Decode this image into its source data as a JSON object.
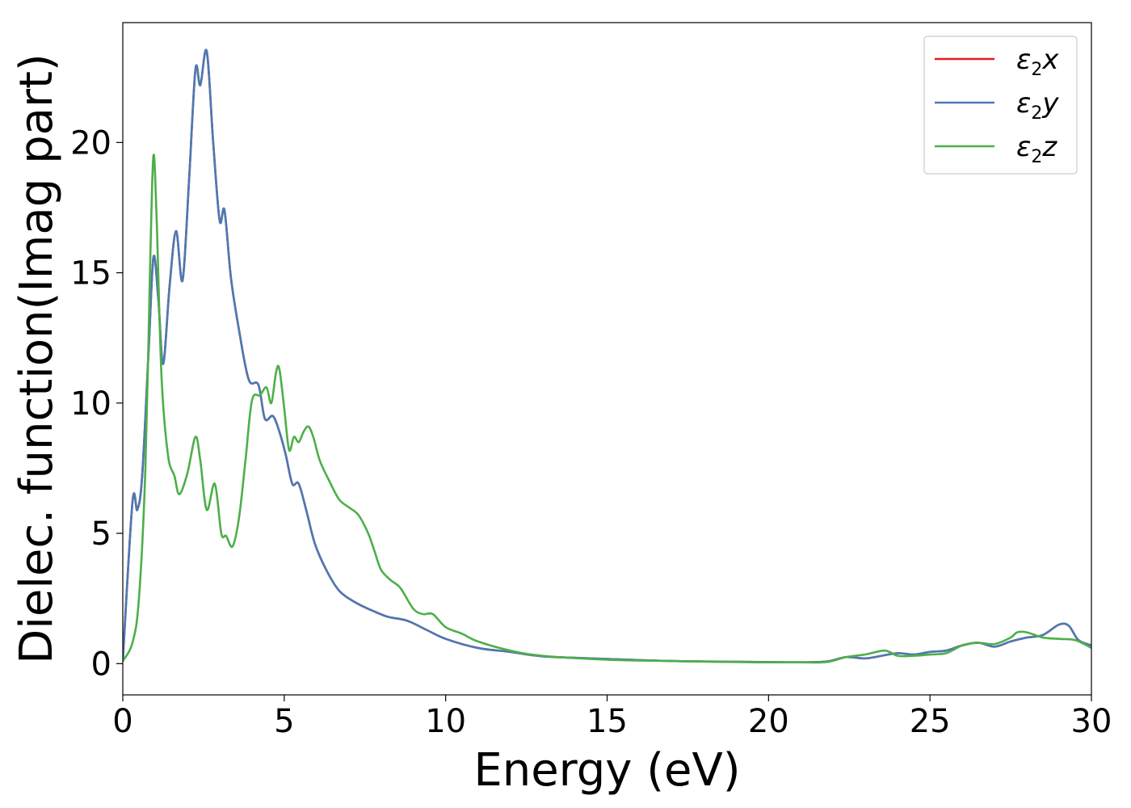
{
  "chart_data": {
    "type": "line",
    "xlabel": "Energy (eV)",
    "ylabel": "Dielec. function(Imag part)",
    "xlim": [
      0,
      30
    ],
    "ylim": [
      -1.2,
      24.6
    ],
    "xticks": [
      0,
      5,
      10,
      15,
      20,
      25,
      30
    ],
    "yticks": [
      0,
      5,
      10,
      15,
      20
    ],
    "xtick_labels": [
      "0",
      "5",
      "10",
      "15",
      "20",
      "25",
      "30"
    ],
    "ytick_labels": [
      "0",
      "5",
      "10",
      "15",
      "20"
    ],
    "grid": false,
    "legend_position": "top-right",
    "series": [
      {
        "name": "ε2x",
        "legend": {
          "symbol": "ε",
          "sub": "2",
          "comp": "x"
        },
        "color": "#e41a1c",
        "x": [
          0,
          0.3,
          0.45,
          0.6,
          0.8,
          0.95,
          1.1,
          1.25,
          1.45,
          1.65,
          1.85,
          2.05,
          2.25,
          2.4,
          2.6,
          2.8,
          3.0,
          3.15,
          3.35,
          3.6,
          3.9,
          4.2,
          4.4,
          4.65,
          4.85,
          5.05,
          5.25,
          5.45,
          5.7,
          5.95,
          6.3,
          6.7,
          7.2,
          7.7,
          8.2,
          8.8,
          9.4,
          10.0,
          11.0,
          12.0,
          13.0,
          15.0,
          17.0,
          19.0,
          20.0,
          21.0,
          21.8,
          22.4,
          23.0,
          23.5,
          24.0,
          24.5,
          25.0,
          25.5,
          26.0,
          26.5,
          27.0,
          27.5,
          28.0,
          28.5,
          29.0,
          29.3,
          29.6,
          30.0
        ],
        "y": [
          0.1,
          6.2,
          5.9,
          7.2,
          12.0,
          15.6,
          14.0,
          11.5,
          14.5,
          16.6,
          14.7,
          18.5,
          22.8,
          22.2,
          23.5,
          20.0,
          17.0,
          17.4,
          14.8,
          12.8,
          10.9,
          10.7,
          9.4,
          9.5,
          8.9,
          8.0,
          6.9,
          6.9,
          5.8,
          4.6,
          3.6,
          2.8,
          2.35,
          2.05,
          1.8,
          1.65,
          1.3,
          0.95,
          0.6,
          0.45,
          0.28,
          0.18,
          0.1,
          0.07,
          0.06,
          0.05,
          0.08,
          0.25,
          0.2,
          0.3,
          0.4,
          0.35,
          0.45,
          0.5,
          0.7,
          0.8,
          0.65,
          0.85,
          1.0,
          1.1,
          1.5,
          1.45,
          0.9,
          0.7
        ]
      },
      {
        "name": "ε2y",
        "legend": {
          "symbol": "ε",
          "sub": "2",
          "comp": "y"
        },
        "color": "#4a7ab5",
        "x": [
          0,
          0.3,
          0.45,
          0.6,
          0.8,
          0.95,
          1.1,
          1.25,
          1.45,
          1.65,
          1.85,
          2.05,
          2.25,
          2.4,
          2.6,
          2.8,
          3.0,
          3.15,
          3.35,
          3.6,
          3.9,
          4.2,
          4.4,
          4.65,
          4.85,
          5.05,
          5.25,
          5.45,
          5.7,
          5.95,
          6.3,
          6.7,
          7.2,
          7.7,
          8.2,
          8.8,
          9.4,
          10.0,
          11.0,
          12.0,
          13.0,
          15.0,
          17.0,
          19.0,
          20.0,
          21.0,
          21.8,
          22.4,
          23.0,
          23.5,
          24.0,
          24.5,
          25.0,
          25.5,
          26.0,
          26.5,
          27.0,
          27.5,
          28.0,
          28.5,
          29.0,
          29.3,
          29.6,
          30.0
        ],
        "y": [
          0.1,
          6.2,
          5.9,
          7.2,
          12.0,
          15.6,
          14.0,
          11.5,
          14.5,
          16.6,
          14.7,
          18.5,
          22.8,
          22.2,
          23.5,
          20.0,
          17.0,
          17.4,
          14.8,
          12.8,
          10.9,
          10.7,
          9.4,
          9.5,
          8.9,
          8.0,
          6.9,
          6.9,
          5.8,
          4.6,
          3.6,
          2.8,
          2.35,
          2.05,
          1.8,
          1.65,
          1.3,
          0.95,
          0.6,
          0.45,
          0.28,
          0.18,
          0.1,
          0.07,
          0.06,
          0.05,
          0.08,
          0.25,
          0.2,
          0.3,
          0.4,
          0.35,
          0.45,
          0.5,
          0.7,
          0.8,
          0.65,
          0.85,
          1.0,
          1.1,
          1.5,
          1.45,
          0.9,
          0.7
        ]
      },
      {
        "name": "ε2z",
        "legend": {
          "symbol": "ε",
          "sub": "2",
          "comp": "z"
        },
        "color": "#4daf4a",
        "x": [
          0,
          0.3,
          0.5,
          0.7,
          0.85,
          0.95,
          1.05,
          1.2,
          1.4,
          1.6,
          1.75,
          2.0,
          2.25,
          2.4,
          2.6,
          2.85,
          3.05,
          3.2,
          3.4,
          3.6,
          3.8,
          4.0,
          4.25,
          4.45,
          4.6,
          4.75,
          4.85,
          5.0,
          5.15,
          5.3,
          5.45,
          5.6,
          5.75,
          5.9,
          6.1,
          6.4,
          6.7,
          7.0,
          7.3,
          7.6,
          7.8,
          8.0,
          8.3,
          8.6,
          9.0,
          9.3,
          9.6,
          10.0,
          10.5,
          11.0,
          12.0,
          13.0,
          15.0,
          17.0,
          19.0,
          20.0,
          21.0,
          21.8,
          22.4,
          23.0,
          23.6,
          24.0,
          24.5,
          25.0,
          25.5,
          26.0,
          26.5,
          27.0,
          27.5,
          27.7,
          28.0,
          28.5,
          29.0,
          29.5,
          30.0
        ],
        "y": [
          0.1,
          0.8,
          2.5,
          7.5,
          15.5,
          19.5,
          17.0,
          11.0,
          8.0,
          7.2,
          6.5,
          7.3,
          8.7,
          7.8,
          5.9,
          6.9,
          5.0,
          4.9,
          4.5,
          5.6,
          7.8,
          10.1,
          10.3,
          10.6,
          10.0,
          11.2,
          11.3,
          9.8,
          8.2,
          8.7,
          8.5,
          8.9,
          9.1,
          8.7,
          7.8,
          7.0,
          6.3,
          6.0,
          5.7,
          5.0,
          4.3,
          3.6,
          3.2,
          2.9,
          2.1,
          1.9,
          1.9,
          1.4,
          1.15,
          0.85,
          0.5,
          0.3,
          0.15,
          0.1,
          0.06,
          0.05,
          0.05,
          0.06,
          0.25,
          0.35,
          0.5,
          0.3,
          0.3,
          0.35,
          0.4,
          0.7,
          0.8,
          0.75,
          1.0,
          1.2,
          1.2,
          1.0,
          0.95,
          0.9,
          0.6
        ]
      }
    ]
  }
}
